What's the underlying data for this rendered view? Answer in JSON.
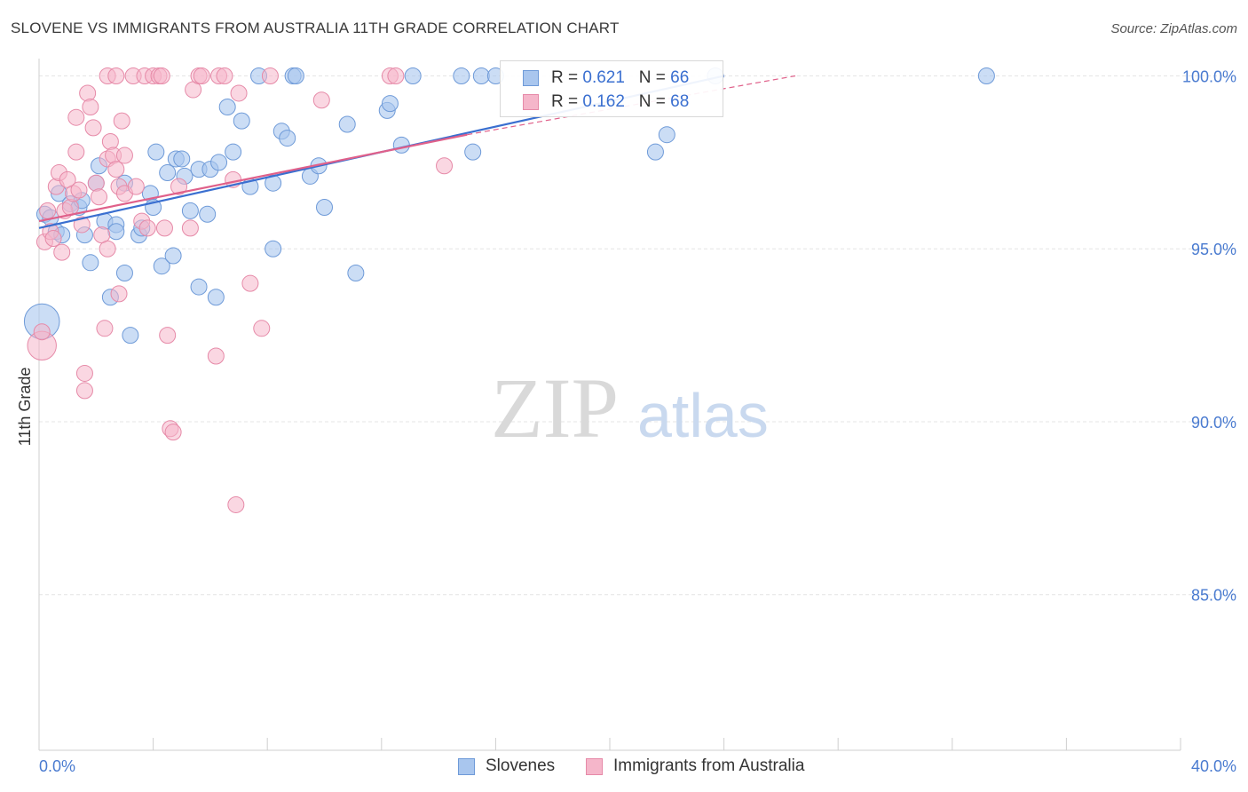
{
  "title": "SLOVENE VS IMMIGRANTS FROM AUSTRALIA 11TH GRADE CORRELATION CHART",
  "source": "Source: ZipAtlas.com",
  "legend": {
    "r_label": "R =",
    "n_label": "N =",
    "series": [
      {
        "name": "Slovenes",
        "r": "0.621",
        "n": "66"
      },
      {
        "name": "Immigrants from Australia",
        "r": "0.162",
        "n": "68"
      }
    ]
  },
  "colors": {
    "blue_fill": "#a9c6ee",
    "blue_stroke": "#6e9ad8",
    "blue_line": "#3a6fd0",
    "pink_fill": "#f5b6ca",
    "pink_stroke": "#e68aa8",
    "pink_line": "#e0608a",
    "tick_label": "#4a7bd0",
    "grid": "#e4e4e4"
  },
  "watermark": {
    "zip": "ZIP",
    "atlas": "atlas"
  },
  "chart_data": {
    "type": "scatter",
    "title": "SLOVENE VS IMMIGRANTS FROM AUSTRALIA 11TH GRADE CORRELATION CHART",
    "xlabel": "",
    "ylabel": "11th Grade",
    "xlim": [
      0,
      40
    ],
    "ylim": [
      80.5,
      100.5
    ],
    "x_tick_labels": [
      "0.0%",
      "40.0%"
    ],
    "y_ticks": [
      85,
      90,
      95,
      100
    ],
    "y_tick_labels": [
      "85.0%",
      "90.0%",
      "95.0%",
      "100.0%"
    ],
    "series": [
      {
        "name": "Slovenes",
        "r": 0.621,
        "n": 66,
        "trend": {
          "x0": 0.0,
          "y0": 95.6,
          "x1": 24.0,
          "y1": 100.0
        },
        "points": [
          [
            0.1,
            92.9,
            2.2
          ],
          [
            0.2,
            96.0,
            1
          ],
          [
            0.4,
            96.3,
            1
          ],
          [
            0.6,
            95.5,
            1
          ],
          [
            0.7,
            96.7,
            1
          ],
          [
            0.8,
            95.5,
            1
          ],
          [
            1.1,
            96.3,
            1
          ],
          [
            1.4,
            96.3,
            1
          ],
          [
            1.5,
            96.6,
            1
          ],
          [
            1.6,
            95.4,
            1
          ],
          [
            1.8,
            94.6,
            1
          ],
          [
            1.9,
            97.0,
            1
          ],
          [
            2.1,
            97.3,
            1
          ],
          [
            2.3,
            97.5,
            1
          ],
          [
            2.3,
            95.9,
            1
          ],
          [
            2.5,
            93.6,
            1
          ],
          [
            2.8,
            95.8,
            1
          ],
          [
            3.0,
            96.5,
            1
          ],
          [
            3.1,
            95.5,
            1
          ],
          [
            3.1,
            97.4,
            1
          ],
          [
            3.1,
            96.9,
            1
          ],
          [
            3.1,
            96.9,
            1
          ],
          [
            3.1,
            96.9,
            1
          ],
          [
            3.1,
            96.9,
            1
          ],
          [
            3.1,
            96.9,
            1
          ],
          [
            3.1,
            96.9,
            1
          ],
          [
            3.1,
            96.9,
            1
          ],
          [
            3.1,
            96.9,
            1
          ],
          [
            3.1,
            96.9,
            1
          ],
          [
            3.1,
            96.9,
            1
          ],
          [
            3.1,
            96.9,
            1
          ],
          [
            3.1,
            96.9,
            1
          ],
          [
            3.1,
            96.9,
            1
          ],
          [
            3.1,
            96.9,
            1
          ],
          [
            3.1,
            96.9,
            1
          ],
          [
            3.1,
            96.9,
            1
          ],
          [
            3.1,
            96.9,
            1
          ],
          [
            3.1,
            96.9,
            1
          ],
          [
            3.1,
            96.9,
            1
          ],
          [
            3.1,
            96.9,
            1
          ],
          [
            3.1,
            96.9,
            1
          ],
          [
            3.1,
            96.9,
            1
          ],
          [
            3.1,
            96.9,
            1
          ],
          [
            3.1,
            96.9,
            1
          ],
          [
            3.1,
            96.9,
            1
          ],
          [
            3.1,
            96.9,
            1
          ],
          [
            3.1,
            96.9,
            1
          ],
          [
            3.1,
            96.9,
            1
          ],
          [
            3.1,
            96.9,
            1
          ],
          [
            3.1,
            96.9,
            1
          ],
          [
            3.1,
            96.9,
            1
          ],
          [
            3.1,
            96.9,
            1
          ],
          [
            3.1,
            96.9,
            1
          ],
          [
            3.1,
            96.9,
            1
          ],
          [
            3.1,
            96.9,
            1
          ],
          [
            3.1,
            96.9,
            1
          ],
          [
            3.1,
            96.9,
            1
          ],
          [
            3.1,
            96.9,
            1
          ],
          [
            3.1,
            96.9,
            1
          ],
          [
            3.1,
            96.9,
            1
          ],
          [
            3.1,
            96.9,
            1
          ],
          [
            3.1,
            96.9,
            1
          ],
          [
            3.1,
            96.9,
            1
          ],
          [
            3.1,
            96.9,
            1
          ],
          [
            3.1,
            96.9,
            1
          ],
          [
            3.1,
            96.9,
            1
          ]
        ]
      },
      {
        "name": "Immigrants from Australia",
        "r": 0.162,
        "n": 68,
        "trend": {
          "x0": 0.0,
          "y0": 95.8,
          "x1": 15.0,
          "y1": 98.3,
          "dash_x1": 26.5,
          "dash_y1": 100.0
        },
        "points": []
      }
    ]
  }
}
